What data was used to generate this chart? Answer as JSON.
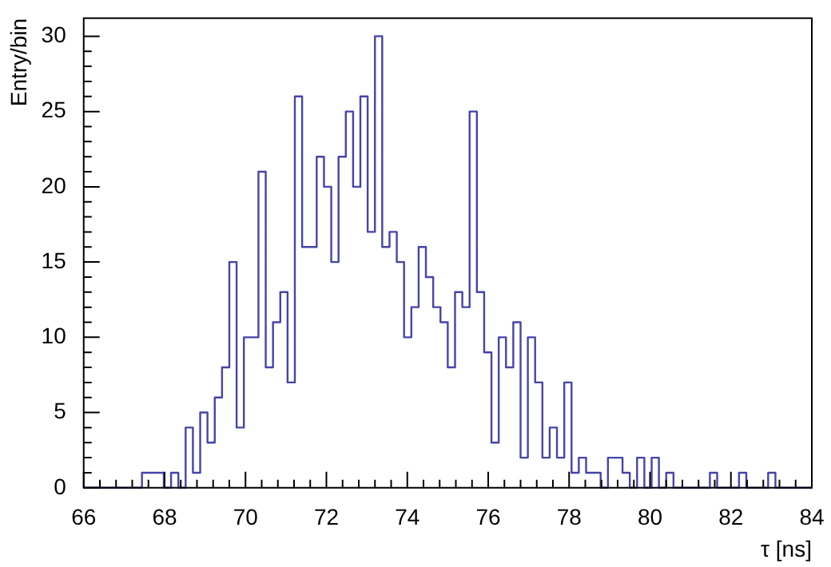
{
  "chart_data": {
    "type": "histogram",
    "xlabel": "τ [ns]",
    "ylabel": "Entry/bin",
    "color": "#4444aa",
    "bins": [
      66,
      66.18,
      66.36,
      66.54,
      66.72,
      66.9,
      67.08,
      67.26,
      67.44,
      67.62,
      67.8,
      67.98,
      68.16,
      68.34,
      68.52,
      68.7,
      68.88,
      69.06,
      69.24,
      69.42,
      69.6,
      69.78,
      69.96,
      70.14,
      70.32,
      70.5,
      70.68,
      70.86,
      71.04,
      71.22,
      71.4,
      71.58,
      71.76,
      71.94,
      72.12,
      72.3,
      72.48,
      72.66,
      72.84,
      73.02,
      73.2,
      73.38,
      73.56,
      73.74,
      73.92,
      74.1,
      74.28,
      74.46,
      74.64,
      74.82,
      75,
      75.18,
      75.36,
      75.54,
      75.72,
      75.9,
      76.08,
      76.26,
      76.44,
      76.62,
      76.8,
      76.98,
      77.16,
      77.34,
      77.52,
      77.7,
      77.88,
      78.06,
      78.24,
      78.42,
      78.6,
      78.78,
      78.96,
      79.14,
      79.32,
      79.5,
      79.68,
      79.86,
      80.04,
      80.22,
      80.4,
      80.58,
      80.76,
      80.94,
      81.12,
      81.3,
      81.48,
      81.66,
      81.84,
      82.02,
      82.2,
      82.38,
      82.56,
      82.74,
      82.92,
      83.1,
      83.28,
      83.46,
      83.64,
      83.82,
      84
    ],
    "values": [
      0,
      0,
      0,
      0,
      0,
      0,
      0,
      0,
      1,
      1,
      1,
      0,
      1,
      0,
      4,
      1,
      5,
      3,
      6,
      8,
      15,
      4,
      10,
      10,
      21,
      8,
      11,
      13,
      7,
      26,
      16,
      16,
      22,
      20,
      15,
      22,
      25,
      20,
      26,
      17,
      30,
      16,
      17,
      15,
      10,
      12,
      16,
      14,
      12,
      11,
      8,
      13,
      12,
      25,
      13,
      9,
      3,
      10,
      8,
      11,
      2,
      10,
      7,
      2,
      4,
      2,
      7,
      1,
      2,
      1,
      1,
      0,
      2,
      2,
      1,
      0,
      2,
      0,
      2,
      0,
      1,
      0,
      0,
      0,
      0,
      0,
      1,
      0,
      0,
      0,
      1,
      0,
      0,
      0,
      1,
      0,
      0,
      0,
      0,
      0
    ],
    "xlim": [
      66,
      84
    ],
    "ylim": [
      0,
      31.2
    ],
    "xticks": [
      66,
      68,
      70,
      72,
      74,
      76,
      78,
      80,
      82,
      84
    ],
    "yticks": [
      0,
      5,
      10,
      15,
      20,
      25,
      30
    ]
  }
}
